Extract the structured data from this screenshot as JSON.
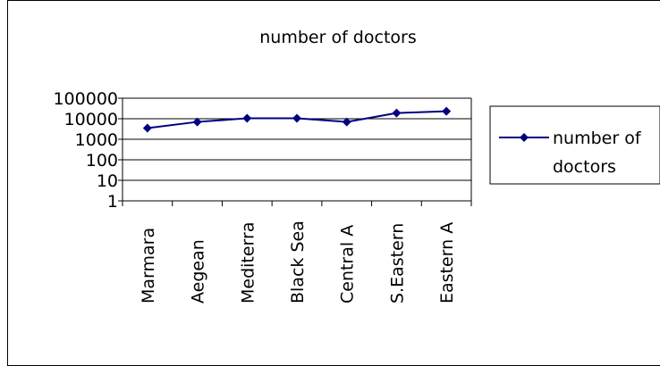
{
  "chart_data": {
    "type": "line",
    "title": "number of doctors",
    "xlabel": "",
    "ylabel": "",
    "y_scale": "log",
    "ylim": [
      1,
      100000
    ],
    "y_ticks": [
      "100000",
      "10000",
      "1000",
      "100",
      "10",
      "1"
    ],
    "categories": [
      "Marmara",
      "Aegean",
      "Mediterranean",
      "Black Sea",
      "Central Anatolia",
      "S.Eastern Anatolia",
      "Eastern Anatolia"
    ],
    "category_labels_shown": [
      "Marmara",
      "Aegean",
      "Mediterra",
      "Black Sea",
      "Central A",
      "S.Eastern",
      "Eastern A"
    ],
    "series": [
      {
        "name": "number of doctors",
        "values": [
          3500,
          7000,
          10500,
          10500,
          7000,
          19000,
          23000
        ],
        "color": "#000080",
        "marker": "diamond"
      }
    ],
    "legend": {
      "placement": "right",
      "label_lines": [
        "number of",
        "doctors"
      ]
    },
    "grid": {
      "horizontal": true,
      "vertical": false
    }
  }
}
